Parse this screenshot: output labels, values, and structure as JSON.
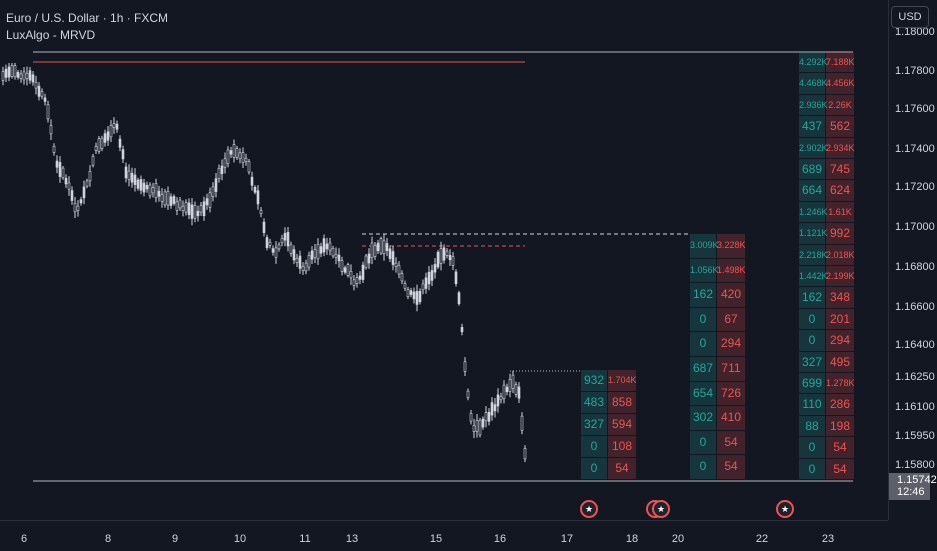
{
  "header": {
    "symbol_title": "Euro / U.S. Dollar · 1h · FXCM",
    "indicator": "LuxAlgo - MRVD"
  },
  "price_axis": {
    "currency": "USD",
    "labels": [
      "1.18000",
      "1.17800",
      "1.17600",
      "1.17400",
      "1.17200",
      "1.17000",
      "1.16800",
      "1.16600",
      "1.16400",
      "1.16250",
      "1.16100",
      "1.15950",
      "1.15800"
    ],
    "current_price": "1.15742",
    "countdown": "12:46"
  },
  "time_axis": {
    "labels": [
      "6",
      "8",
      "9",
      "10",
      "11",
      "13",
      "15",
      "16",
      "17",
      "18",
      "20",
      "22",
      "23"
    ]
  },
  "profiles": [
    {
      "rows": [
        {
          "buy": "932",
          "sell": "1.704K"
        },
        {
          "buy": "483",
          "sell": "858"
        },
        {
          "buy": "327",
          "sell": "594"
        },
        {
          "buy": "0",
          "sell": "108"
        },
        {
          "buy": "0",
          "sell": "54"
        }
      ]
    },
    {
      "rows": [
        {
          "buy": "3.009K",
          "sell": "3.228K"
        },
        {
          "buy": "1.056K",
          "sell": "1.498K"
        },
        {
          "buy": "162",
          "sell": "420"
        },
        {
          "buy": "0",
          "sell": "67"
        },
        {
          "buy": "0",
          "sell": "294"
        },
        {
          "buy": "687",
          "sell": "711"
        },
        {
          "buy": "654",
          "sell": "726"
        },
        {
          "buy": "302",
          "sell": "410"
        },
        {
          "buy": "0",
          "sell": "54"
        },
        {
          "buy": "0",
          "sell": "54"
        }
      ]
    },
    {
      "rows": [
        {
          "buy": "4.292K",
          "sell": "7.188K"
        },
        {
          "buy": "4.468K",
          "sell": "4.456K"
        },
        {
          "buy": "2.936K",
          "sell": "2.26K"
        },
        {
          "buy": "437",
          "sell": "562"
        },
        {
          "buy": "2.902K",
          "sell": "2.934K"
        },
        {
          "buy": "689",
          "sell": "745"
        },
        {
          "buy": "664",
          "sell": "624"
        },
        {
          "buy": "1.246K",
          "sell": "1.61K"
        },
        {
          "buy": "1.121K",
          "sell": "992"
        },
        {
          "buy": "2.218K",
          "sell": "2.018K"
        },
        {
          "buy": "1.442K",
          "sell": "2.199K"
        },
        {
          "buy": "162",
          "sell": "348"
        },
        {
          "buy": "0",
          "sell": "201"
        },
        {
          "buy": "0",
          "sell": "294"
        },
        {
          "buy": "327",
          "sell": "495"
        },
        {
          "buy": "699",
          "sell": "1.278K"
        },
        {
          "buy": "110",
          "sell": "286"
        },
        {
          "buy": "88",
          "sell": "198"
        },
        {
          "buy": "0",
          "sell": "54"
        },
        {
          "buy": "0",
          "sell": "54"
        }
      ]
    }
  ],
  "colors": {
    "background": "#131722",
    "buy": "#26a69a",
    "sell": "#ef5350",
    "candle": "#d1d4dc"
  },
  "event_icons": [
    "us-flag-icon",
    "us-flag-icon",
    "us-flag-icon",
    "us-flag-icon"
  ]
}
